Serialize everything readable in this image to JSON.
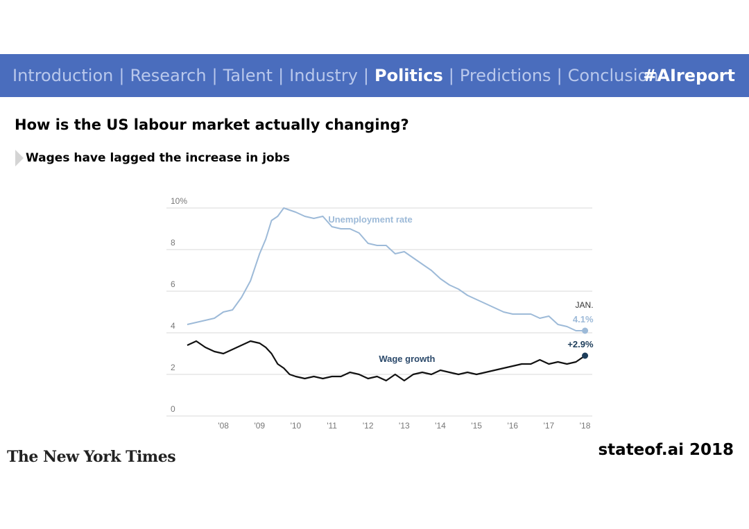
{
  "nav": {
    "items": [
      {
        "label": "Introduction",
        "active": false
      },
      {
        "label": "Research",
        "active": false
      },
      {
        "label": "Talent",
        "active": false
      },
      {
        "label": "Industry",
        "active": false
      },
      {
        "label": "Politics",
        "active": true
      },
      {
        "label": "Predictions",
        "active": false
      },
      {
        "label": "Conclusion",
        "active": false
      }
    ],
    "separator": "|",
    "hashtag": "#AIreport"
  },
  "slide": {
    "title": "How is the US labour market actually changing?",
    "bullet": "Wages have lagged the increase in jobs"
  },
  "footer": {
    "source_logo": "The New York Times",
    "brand": "stateof.ai 2018"
  },
  "chart_data": {
    "type": "line",
    "title": "",
    "xlabel": "",
    "ylabel": "",
    "ylim": [
      0,
      10
    ],
    "xlim": [
      2007.0,
      2018.2
    ],
    "grid": true,
    "y_ticks": [
      {
        "value": 10,
        "label": "10%"
      },
      {
        "value": 8,
        "label": "8"
      },
      {
        "value": 6,
        "label": "6"
      },
      {
        "value": 4,
        "label": "4"
      },
      {
        "value": 2,
        "label": "2"
      },
      {
        "value": 0,
        "label": "0"
      }
    ],
    "x_ticks": [
      {
        "value": 2008,
        "label": "'08"
      },
      {
        "value": 2009,
        "label": "'09"
      },
      {
        "value": 2010,
        "label": "'10"
      },
      {
        "value": 2011,
        "label": "'11"
      },
      {
        "value": 2012,
        "label": "'12"
      },
      {
        "value": 2013,
        "label": "'13"
      },
      {
        "value": 2014,
        "label": "'14"
      },
      {
        "value": 2015,
        "label": "'15"
      },
      {
        "value": 2016,
        "label": "'16"
      },
      {
        "value": 2017,
        "label": "'17"
      },
      {
        "value": 2018,
        "label": "'18"
      }
    ],
    "series": [
      {
        "name": "Unemployment rate",
        "color": "#9dbad8",
        "x": [
          2007.0,
          2007.25,
          2007.5,
          2007.75,
          2008.0,
          2008.25,
          2008.5,
          2008.75,
          2009.0,
          2009.17,
          2009.33,
          2009.5,
          2009.67,
          2009.83,
          2010.0,
          2010.25,
          2010.5,
          2010.75,
          2011.0,
          2011.25,
          2011.5,
          2011.75,
          2012.0,
          2012.25,
          2012.5,
          2012.75,
          2013.0,
          2013.25,
          2013.5,
          2013.75,
          2014.0,
          2014.25,
          2014.5,
          2014.75,
          2015.0,
          2015.25,
          2015.5,
          2015.75,
          2016.0,
          2016.25,
          2016.5,
          2016.75,
          2017.0,
          2017.25,
          2017.5,
          2017.75,
          2018.0
        ],
        "values": [
          4.4,
          4.5,
          4.6,
          4.7,
          5.0,
          5.1,
          5.7,
          6.5,
          7.8,
          8.5,
          9.4,
          9.6,
          10.0,
          9.9,
          9.8,
          9.6,
          9.5,
          9.6,
          9.1,
          9.0,
          9.0,
          8.8,
          8.3,
          8.2,
          8.2,
          7.8,
          7.9,
          7.6,
          7.3,
          7.0,
          6.6,
          6.3,
          6.1,
          5.8,
          5.6,
          5.4,
          5.2,
          5.0,
          4.9,
          4.9,
          4.9,
          4.7,
          4.8,
          4.4,
          4.3,
          4.1,
          4.1
        ]
      },
      {
        "name": "Wage growth",
        "color": "#111111",
        "x": [
          2007.0,
          2007.25,
          2007.5,
          2007.75,
          2008.0,
          2008.25,
          2008.5,
          2008.75,
          2009.0,
          2009.17,
          2009.33,
          2009.5,
          2009.67,
          2009.83,
          2010.0,
          2010.25,
          2010.5,
          2010.75,
          2011.0,
          2011.25,
          2011.5,
          2011.75,
          2012.0,
          2012.25,
          2012.5,
          2012.75,
          2013.0,
          2013.25,
          2013.5,
          2013.75,
          2014.0,
          2014.25,
          2014.5,
          2014.75,
          2015.0,
          2015.25,
          2015.5,
          2015.75,
          2016.0,
          2016.25,
          2016.5,
          2016.75,
          2017.0,
          2017.25,
          2017.5,
          2017.75,
          2018.0
        ],
        "values": [
          3.4,
          3.6,
          3.3,
          3.1,
          3.0,
          3.2,
          3.4,
          3.6,
          3.5,
          3.3,
          3.0,
          2.5,
          2.3,
          2.0,
          1.9,
          1.8,
          1.9,
          1.8,
          1.9,
          1.9,
          2.1,
          2.0,
          1.8,
          1.9,
          1.7,
          2.0,
          1.7,
          2.0,
          2.1,
          2.0,
          2.2,
          2.1,
          2.0,
          2.1,
          2.0,
          2.1,
          2.2,
          2.3,
          2.4,
          2.5,
          2.5,
          2.7,
          2.5,
          2.6,
          2.5,
          2.6,
          2.9
        ]
      }
    ],
    "annotations": [
      {
        "text": "Unemployment rate",
        "x": 2010.9,
        "y": 9.3,
        "color": "#9dbad8"
      },
      {
        "text": "Wage growth",
        "x": 2012.3,
        "y": 2.6,
        "color": "#2c4a6b"
      },
      {
        "text": "JAN.",
        "x": 2018.0,
        "y": 5.2,
        "color": "#333333"
      },
      {
        "text": "4.1%",
        "x": 2018.0,
        "y": 4.5,
        "color": "#9dbad8"
      },
      {
        "text": "+2.9%",
        "x": 2018.0,
        "y": 3.3,
        "color": "#1d3d5a"
      }
    ]
  }
}
